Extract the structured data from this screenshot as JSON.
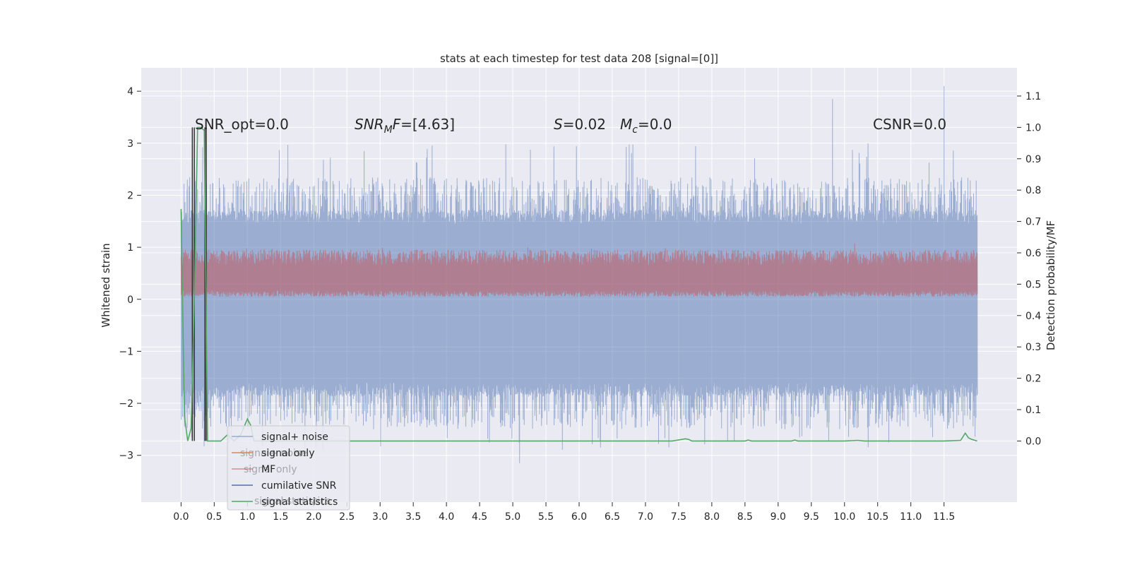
{
  "chart_data": {
    "type": "line",
    "title": "stats at each timestep for test data 208 [signal=[0]]",
    "ylabel_left": "Whitened strain",
    "ylabel_right": "Detection probability/MF",
    "xlim": [
      -0.6,
      12.6
    ],
    "ylim_left": [
      -3.9,
      4.45
    ],
    "ylim_right": [
      -0.195,
      1.19
    ],
    "x_ticks": [
      0.0,
      0.5,
      1.0,
      1.5,
      2.0,
      2.5,
      3.0,
      3.5,
      4.0,
      4.5,
      5.0,
      5.5,
      6.0,
      6.5,
      7.0,
      7.5,
      8.0,
      8.5,
      9.0,
      9.5,
      10.0,
      10.5,
      11.0,
      11.5
    ],
    "x_tick_labels": [
      "0.0",
      "0.5",
      "1.0",
      "1.5",
      "2.0",
      "2.5",
      "3.0",
      "3.5",
      "4.0",
      "4.5",
      "5.0",
      "5.5",
      "6.0",
      "6.5",
      "7.0",
      "7.5",
      "8.0",
      "8.5",
      "9.0",
      "9.5",
      "10.0",
      "10.5",
      "11.0",
      "11.5"
    ],
    "y_left_ticks": [
      -3,
      -2,
      -1,
      0,
      1,
      2,
      3,
      4
    ],
    "y_left_tick_labels": [
      "−3",
      "−2",
      "−1",
      "0",
      "1",
      "2",
      "3",
      "4"
    ],
    "y_right_ticks": [
      0.0,
      0.1,
      0.2,
      0.3,
      0.4,
      0.5,
      0.6,
      0.7,
      0.8,
      0.9,
      1.0,
      1.1
    ],
    "y_right_tick_labels": [
      "0.0",
      "0.1",
      "0.2",
      "0.3",
      "0.4",
      "0.5",
      "0.6",
      "0.7",
      "0.8",
      "0.9",
      "1.0",
      "1.1"
    ],
    "grid": true,
    "legend_placement": "lower-left",
    "colors": {
      "background": "#eaeaf2",
      "grid": "#ffffff",
      "signal_noise": "#4c72b0",
      "signal_only": "#dd8452",
      "mf": "#c44e52",
      "cumulative_snr": "#4c72b0",
      "signal_statistics": "#55a868",
      "dark_lines": "#333333"
    },
    "series": [
      {
        "name": "signal+ noise",
        "color": "#4c72b0",
        "alpha": 0.5,
        "x_range": [
          0.0,
          12.0
        ],
        "band": [
          -1.6,
          1.45
        ],
        "peaks_max": 4.1,
        "peaks_min": -3.15
      },
      {
        "name": "signal only",
        "color": "#dd8452",
        "values_note": "",
        "x": [
          0.0,
          12.0
        ],
        "y": [
          0.0,
          0.0
        ]
      },
      {
        "name": "MF",
        "color": "#c44e52",
        "alpha": 0.5,
        "axis": "right",
        "x_range": [
          0.0,
          12.0
        ],
        "band": [
          0.46,
          0.56
        ],
        "peaks_max": 0.63
      },
      {
        "name": "cumilative SNR",
        "color": "#4c72b0",
        "axis": "right",
        "x": [],
        "y": []
      },
      {
        "name": "signal statistics",
        "color": "#55a868",
        "axis": "right",
        "x": [
          0.0,
          0.05,
          0.1,
          0.15,
          0.2,
          0.25,
          0.3,
          0.35,
          0.4,
          0.45,
          0.5,
          0.6,
          0.7,
          0.8,
          0.9,
          1.0,
          1.05,
          1.1,
          1.2,
          1.5,
          2.0,
          3.0,
          4.0,
          5.0,
          6.0,
          7.0,
          7.4,
          7.55,
          7.6,
          7.65,
          7.7,
          8.0,
          8.5,
          8.55,
          8.6,
          9.0,
          9.2,
          9.25,
          9.3,
          10.0,
          10.2,
          10.3,
          11.0,
          11.5,
          11.75,
          11.82,
          11.87,
          11.92,
          12.0
        ],
        "y": [
          0.74,
          0.08,
          0.0,
          0.04,
          0.45,
          1.0,
          1.0,
          0.99,
          0.0,
          0.0,
          0.0,
          0.0,
          0.02,
          0.0,
          0.02,
          0.07,
          0.05,
          0.0,
          0.0,
          0.0,
          0.0,
          0.0,
          0.0,
          0.0,
          0.0,
          0.0,
          0.0,
          0.005,
          0.007,
          0.005,
          0.0,
          0.0,
          0.0,
          0.003,
          0.0,
          0.0,
          0.0,
          0.003,
          0.0,
          0.0,
          0.002,
          0.0,
          0.0,
          0.0,
          0.002,
          0.025,
          0.01,
          0.005,
          0.0
        ]
      },
      {
        "name": "",
        "color": "#333333",
        "axis": "right",
        "kind": "spikes",
        "x": [
          0.17,
          0.2,
          0.36,
          0.38
        ],
        "y": [
          1.0,
          0.0,
          1.0,
          0.0
        ]
      }
    ],
    "annotations": {
      "snr_opt": "SNR_opt=0.0",
      "snr_mf_main": "SNR",
      "snr_mf_sub": "M",
      "snr_mf_tail_italic": "F",
      "snr_mf_rest": "=[4.63]",
      "s_italic": "S",
      "s_rest": "=0.02",
      "mc_italic": "M",
      "mc_sub": "c",
      "mc_rest": "=0.0",
      "csnr": "CSNR=0.0"
    },
    "legend": [
      "signal+ noise",
      "signal only",
      "MF",
      "cumilative SNR",
      "signal statistics"
    ],
    "legend_ghost_text": [
      "signal+ noise",
      "signal only",
      "signal statistics"
    ]
  }
}
